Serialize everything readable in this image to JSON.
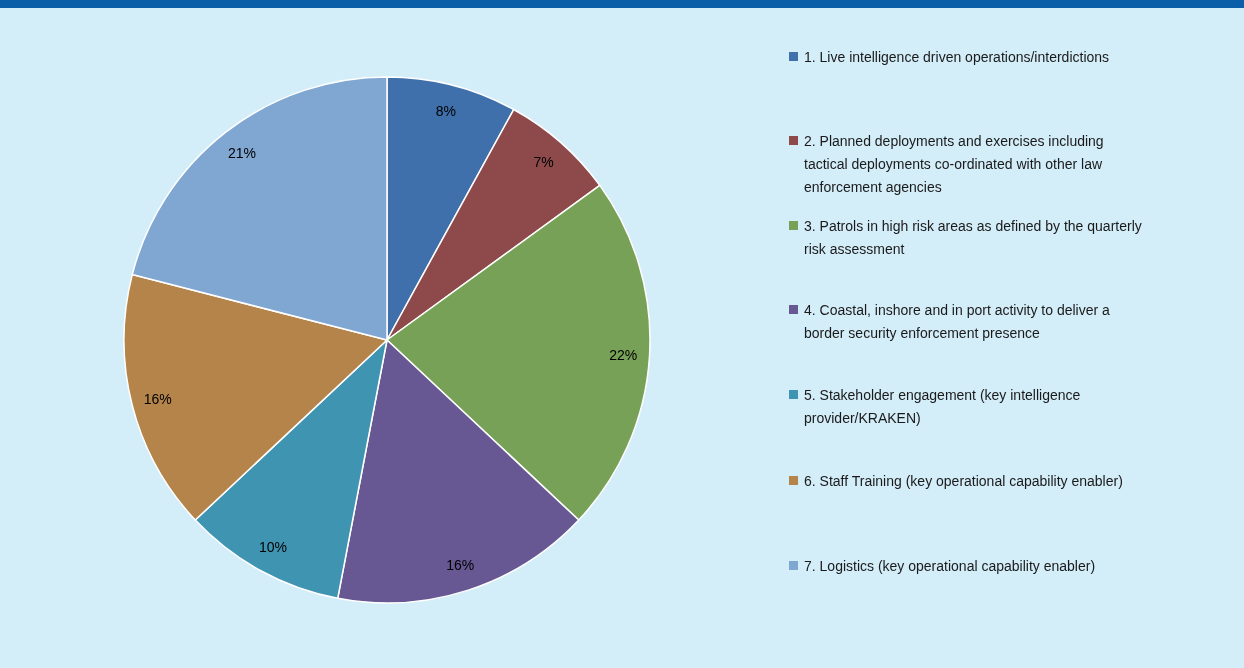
{
  "chart_data": {
    "type": "pie",
    "categories": [
      "1. Live intelligence driven operations/interdictions",
      "2. Planned deployments and exercises including tactical deployments co-ordinated with other law enforcement agencies",
      "3. Patrols in high risk areas as defined by the quarterly risk assessment",
      "4. Coastal, inshore and in port activity to deliver a border security enforcement presence",
      "5. Stakeholder engagement (key intelligence provider/KRAKEN)",
      "6. Staff Training (key operational capability enabler)",
      "7. Logistics (key operational capability enabler)"
    ],
    "values": [
      8,
      7,
      22,
      16,
      10,
      16,
      21
    ],
    "colors": [
      "#3f70ab",
      "#8e4a4b",
      "#77a156",
      "#675893",
      "#3f94b1",
      "#b5844a",
      "#80a6d2"
    ],
    "value_labels": [
      "8%",
      "7%",
      "22%",
      "16%",
      "10%",
      "16%",
      "21%"
    ],
    "legend": "right"
  }
}
